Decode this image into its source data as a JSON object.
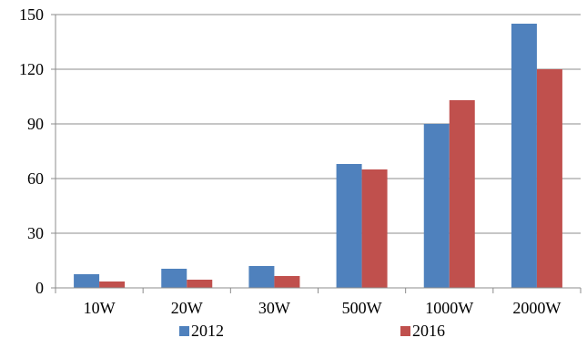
{
  "chart_data": {
    "type": "bar",
    "title": "",
    "xlabel": "",
    "ylabel": "",
    "categories": [
      "10W",
      "20W",
      "30W",
      "500W",
      "1000W",
      "2000W"
    ],
    "series": [
      {
        "name": "2012",
        "values": [
          7.5,
          10.5,
          12,
          68,
          90,
          145
        ],
        "color": "#4F81BD"
      },
      {
        "name": "2016",
        "values": [
          3.5,
          4.5,
          6.5,
          65,
          103,
          120
        ],
        "color": "#C0504D"
      }
    ],
    "ylim": [
      0,
      150
    ],
    "yticks": [
      "0",
      "30",
      "60",
      "90",
      "120",
      "150"
    ],
    "grid": true,
    "legend_position": "bottom"
  }
}
